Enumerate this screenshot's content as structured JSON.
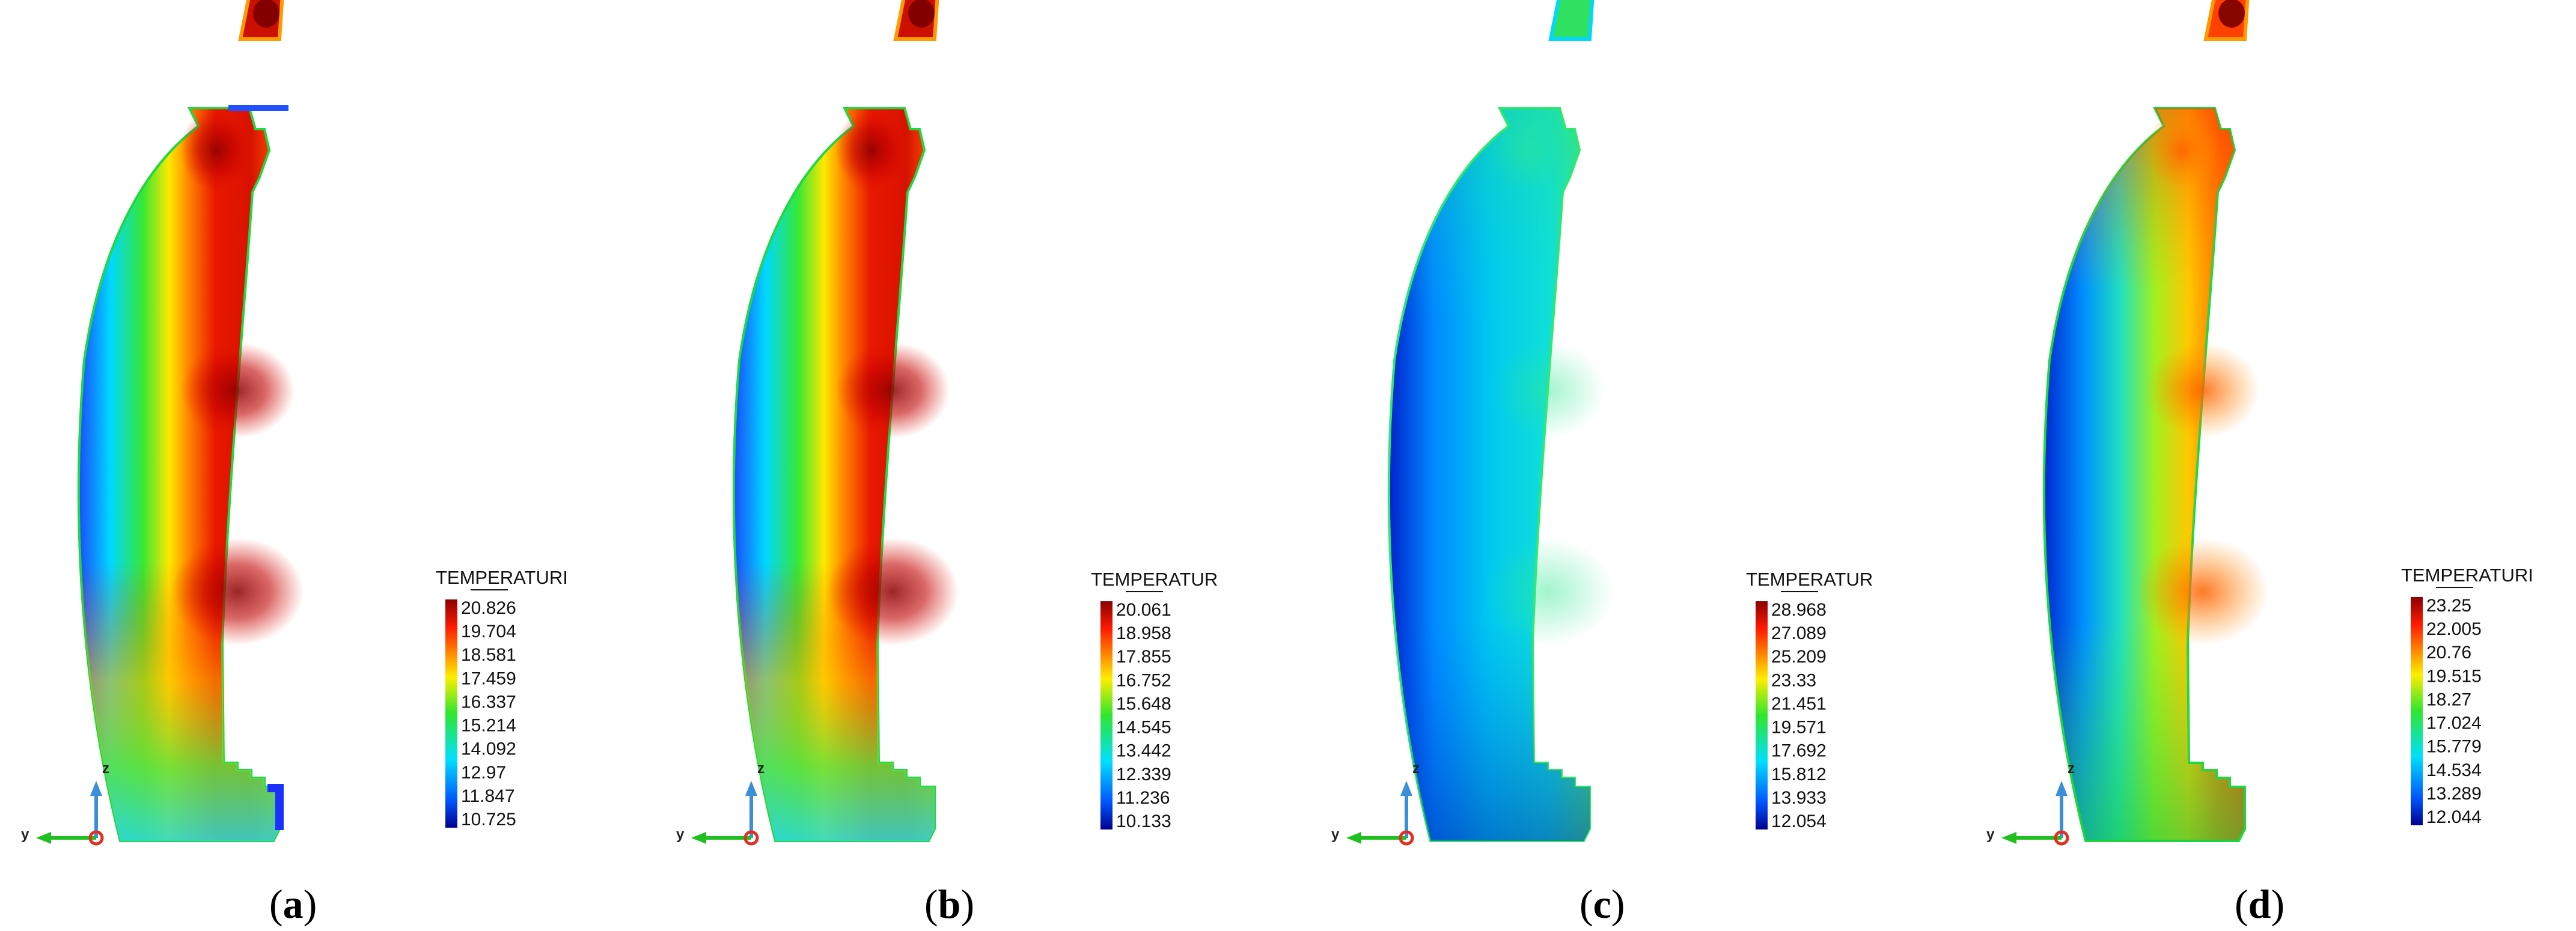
{
  "panels": [
    {
      "caption_open": "(",
      "caption_letter": "a",
      "caption_close": ")",
      "legend_title": "TEMPERATURI",
      "legend_ticks": [
        "20.826",
        "19.704",
        "18.581",
        "17.459",
        "16.337",
        "15.214",
        "14.092",
        "12.97",
        "11.847",
        "10.725"
      ],
      "palette": "hot",
      "axis_z": "z",
      "axis_y": "y"
    },
    {
      "caption_open": "(",
      "caption_letter": "b",
      "caption_close": ")",
      "legend_title": "TEMPERATUR",
      "legend_ticks": [
        "20.061",
        "18.958",
        "17.855",
        "16.752",
        "15.648",
        "14.545",
        "13.442",
        "12.339",
        "11.236",
        "10.133"
      ],
      "palette": "hot",
      "axis_z": "z",
      "axis_y": "y"
    },
    {
      "caption_open": "(",
      "caption_letter": "c",
      "caption_close": ")",
      "legend_title": "TEMPERATUR",
      "legend_ticks": [
        "28.968",
        "27.089",
        "25.209",
        "23.33",
        "21.451",
        "19.571",
        "17.692",
        "15.812",
        "13.933",
        "12.054"
      ],
      "palette": "cool",
      "axis_z": "z",
      "axis_y": "y"
    },
    {
      "caption_open": "(",
      "caption_letter": "d",
      "caption_close": ")",
      "legend_title": "TEMPERATURI",
      "legend_ticks": [
        "23.25",
        "22.005",
        "20.76",
        "19.515",
        "18.27",
        "17.024",
        "15.779",
        "14.534",
        "13.289",
        "12.044"
      ],
      "palette": "warm",
      "axis_z": "z",
      "axis_y": "y"
    }
  ],
  "colors": {
    "jet_top": "#8b0000",
    "jet_red": "#ff1a00",
    "jet_yellow": "#ffee00",
    "jet_green": "#2ee62e",
    "jet_cyan": "#00e0ff",
    "jet_blue": "#0000d0",
    "axis_blue": "#3a8fd8",
    "axis_green": "#20c020",
    "axis_origin": "#e03020"
  }
}
